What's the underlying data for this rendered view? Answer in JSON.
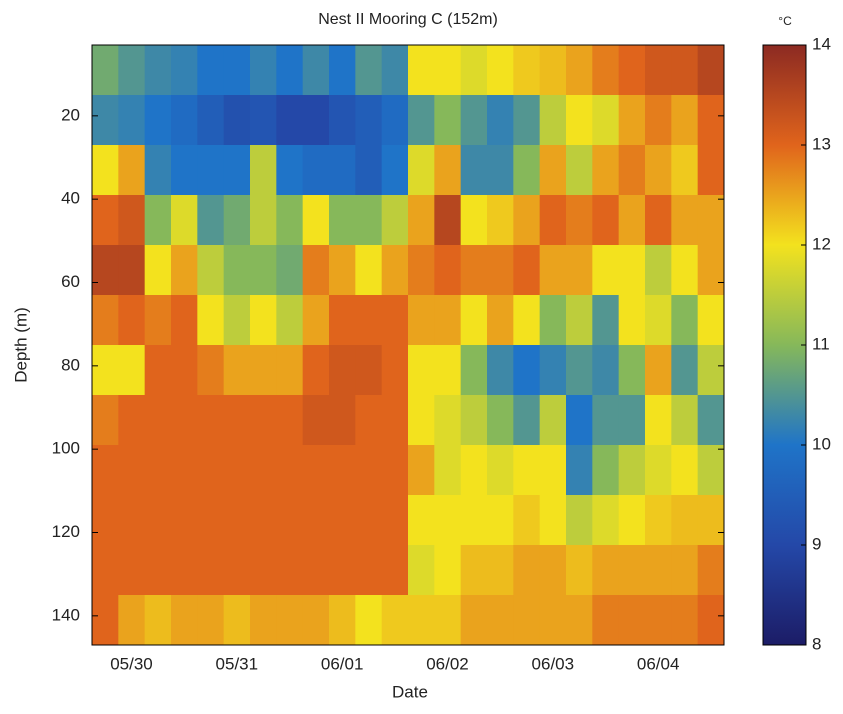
{
  "chart_data": {
    "type": "heatmap",
    "title": "Nest II Mooring C (152m)",
    "xlabel": "Date",
    "ylabel": "Depth (m)",
    "colorbar_label": "°C",
    "categories": [
      null,
      "05/30",
      null,
      null,
      null,
      "05/31",
      null,
      null,
      null,
      "06/01",
      null,
      null,
      null,
      "06/02",
      null,
      null,
      null,
      "06/03",
      null,
      null,
      null,
      "06/04",
      null,
      null
    ],
    "y": [
      9,
      21,
      33,
      45,
      57,
      69,
      81,
      93,
      105,
      117,
      129,
      141
    ],
    "ylim": [
      3,
      147
    ],
    "y_reversed": true,
    "yticks": [
      20,
      40,
      60,
      80,
      100,
      120,
      140
    ],
    "clim": [
      8,
      14
    ],
    "cticks": [
      8,
      9,
      10,
      11,
      12,
      13,
      14
    ],
    "colormap": [
      "#1c1c66",
      "#2448a8",
      "#1f74c8",
      "#86b85a",
      "#f3e21e",
      "#e0641c",
      "#8c2a22"
    ],
    "values": [
      [
        10.8,
        10.5,
        10.3,
        10.2,
        10,
        10,
        10.2,
        10,
        10.3,
        10,
        10.5,
        10.3,
        12,
        12,
        11.8,
        12,
        12.2,
        12.3,
        12.5,
        12.8,
        13,
        13.2,
        13.2,
        13.5
      ],
      [
        10.3,
        10.2,
        10,
        9.8,
        9.5,
        9.2,
        9.3,
        9,
        9,
        9.3,
        9.5,
        9.8,
        10.5,
        11,
        10.5,
        10.2,
        10.5,
        11.5,
        12,
        11.8,
        12.5,
        12.8,
        12.5,
        13
      ],
      [
        12,
        12.5,
        10.2,
        10,
        10,
        10,
        11.5,
        10,
        9.8,
        9.8,
        9.5,
        10,
        11.8,
        12.5,
        10.3,
        10.3,
        11,
        12.5,
        11.5,
        12.5,
        12.8,
        12.5,
        12.2,
        13
      ],
      [
        13,
        13.2,
        11,
        11.8,
        10.5,
        10.8,
        11.5,
        11,
        12,
        11,
        11,
        11.5,
        12.5,
        13.5,
        12,
        12.2,
        12.5,
        13,
        12.8,
        13,
        12.5,
        13,
        12.5,
        12.5
      ],
      [
        13.5,
        13.5,
        12,
        12.5,
        11.5,
        11,
        11,
        10.8,
        12.8,
        12.5,
        12,
        12.5,
        12.8,
        13,
        12.8,
        12.8,
        13,
        12.5,
        12.5,
        12,
        12,
        11.5,
        12,
        12.5
      ],
      [
        12.8,
        13,
        12.8,
        13,
        12,
        11.5,
        12,
        11.5,
        12.5,
        13,
        13,
        13,
        12.5,
        12.5,
        12,
        12.5,
        12,
        11,
        11.5,
        10.5,
        12,
        11.8,
        11,
        12
      ],
      [
        12,
        12,
        13,
        13,
        12.8,
        12.5,
        12.5,
        12.5,
        13,
        13.2,
        13.2,
        13,
        12,
        12,
        11,
        10.3,
        10,
        10.2,
        10.5,
        10.3,
        11,
        12.5,
        10.5,
        11.5
      ],
      [
        12.8,
        13,
        13,
        13,
        13,
        13,
        13,
        13,
        13.2,
        13.2,
        13,
        13,
        12,
        11.8,
        11.5,
        11,
        10.5,
        11.5,
        10,
        10.5,
        10.5,
        12,
        11.5,
        10.5
      ],
      [
        13,
        13,
        13,
        13,
        13,
        13,
        13,
        13,
        13,
        13,
        13,
        13,
        12.5,
        11.8,
        12,
        11.8,
        12,
        12,
        10.2,
        11,
        11.5,
        11.8,
        12,
        11.5
      ],
      [
        13,
        13,
        13,
        13,
        13,
        13,
        13,
        13,
        13,
        13,
        13,
        13,
        12,
        12,
        12,
        12,
        12.2,
        12,
        11.5,
        11.8,
        12,
        12.2,
        12.3,
        12.3
      ],
      [
        13,
        13,
        13,
        13,
        13,
        13,
        13,
        13,
        13,
        13,
        13,
        13,
        11.8,
        12,
        12.3,
        12.3,
        12.5,
        12.5,
        12.3,
        12.5,
        12.5,
        12.5,
        12.5,
        12.8
      ],
      [
        13,
        12.5,
        12.3,
        12.5,
        12.5,
        12.3,
        12.5,
        12.5,
        12.5,
        12.3,
        12,
        12.2,
        12.2,
        12.2,
        12.5,
        12.5,
        12.5,
        12.5,
        12.5,
        12.8,
        12.8,
        12.8,
        12.8,
        13
      ]
    ]
  }
}
